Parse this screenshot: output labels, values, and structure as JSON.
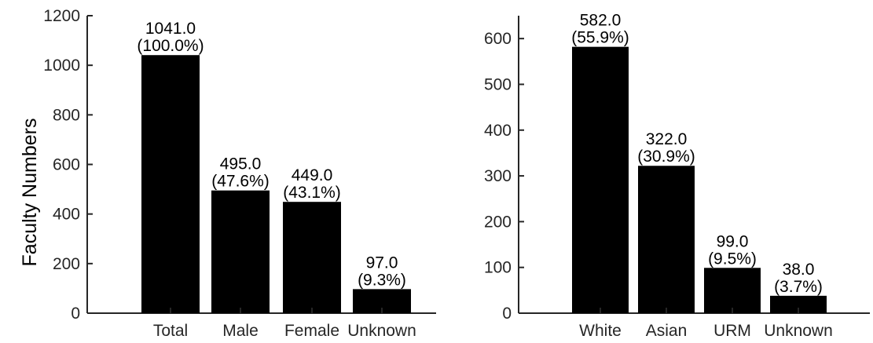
{
  "chart_data": [
    {
      "type": "bar",
      "ylabel": "Faculty Numbers",
      "categories": [
        "Total",
        "Male",
        "Female",
        "Unknown"
      ],
      "values": [
        1041,
        495,
        449,
        97
      ],
      "value_labels": [
        "1041.0",
        "495.0",
        "449.0",
        "97.0"
      ],
      "percent_labels": [
        "(100.0%)",
        "(47.6%)",
        "(43.1%)",
        "(9.3%)"
      ],
      "ylim": [
        0,
        1200
      ],
      "yticks": [
        "0",
        "200",
        "400",
        "600",
        "800",
        "1000",
        "1200"
      ],
      "grid": false,
      "bar_color": "#000000"
    },
    {
      "type": "bar",
      "ylabel": "",
      "categories": [
        "White",
        "Asian",
        "URM",
        "Unknown"
      ],
      "values": [
        582,
        322,
        99,
        38
      ],
      "value_labels": [
        "582.0",
        "322.0",
        "99.0",
        "38.0"
      ],
      "percent_labels": [
        "(55.9%)",
        "(30.9%)",
        "(9.5%)",
        "(3.7%)"
      ],
      "ylim": [
        0,
        650
      ],
      "yticks": [
        "0",
        "100",
        "200",
        "300",
        "400",
        "500",
        "600"
      ],
      "grid": false,
      "bar_color": "#000000"
    }
  ]
}
